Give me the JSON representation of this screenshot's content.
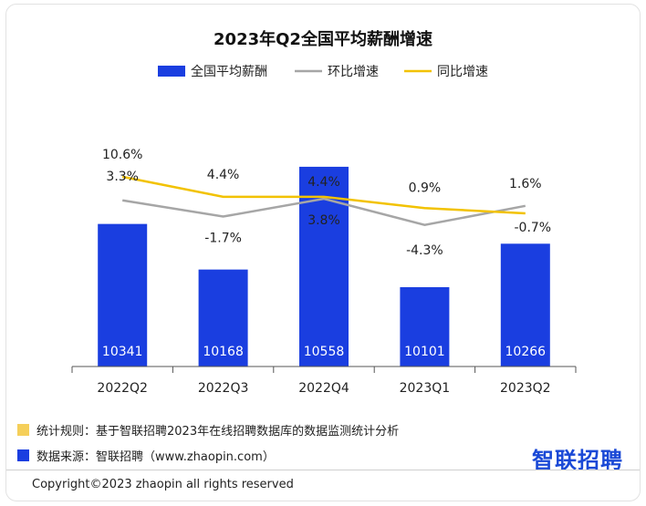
{
  "chart_data": {
    "type": "bar",
    "title": "2023年Q2全国平均薪酬增速",
    "categories": [
      "2022Q2",
      "2022Q3",
      "2022Q4",
      "2023Q1",
      "2023Q2"
    ],
    "series": [
      {
        "name": "全国平均薪酬",
        "type": "bar",
        "values": [
          10341,
          10168,
          10558,
          10101,
          10266
        ],
        "color": "#1a3ee0"
      },
      {
        "name": "环比增速",
        "type": "line",
        "values": [
          3.3,
          -1.7,
          3.8,
          -4.3,
          1.6
        ],
        "labels": [
          "3.3%",
          "-1.7%",
          "3.8%",
          "-4.3%",
          "1.6%"
        ],
        "color": "#a6a6a6"
      },
      {
        "name": "同比增速",
        "type": "line",
        "values": [
          10.6,
          4.4,
          4.4,
          0.9,
          -0.7
        ],
        "labels": [
          "10.6%",
          "4.4%",
          "4.4%",
          "0.9%",
          "-0.7%"
        ],
        "color": "#f2c200"
      }
    ],
    "bar_ylim": [
      9800,
      10620
    ],
    "legend_position": "top-center",
    "grid": false
  },
  "footer": {
    "rule_label": "统计规则：基于智联招聘2023年在线招聘数据库的数据监测统计分析",
    "source_label": "数据来源：智联招聘（www.zhaopin.com）",
    "rule_color": "#f5cf5a",
    "source_color": "#1a3ee0",
    "brand": "智联招聘",
    "copyright": "Copyright©2023 zhaopin all rights reserved"
  }
}
